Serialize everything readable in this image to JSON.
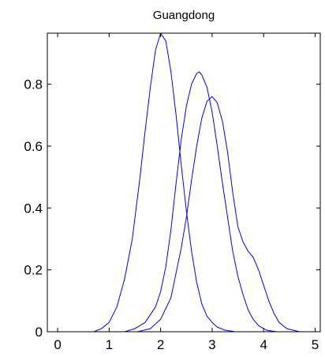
{
  "chart_data": {
    "type": "line",
    "title": "Guangdong",
    "xlabel": "",
    "ylabel": "",
    "xlim": [
      -0.2,
      5.1
    ],
    "ylim": [
      0,
      0.965
    ],
    "xticks": [
      "0",
      "1",
      "2",
      "3",
      "4",
      "5"
    ],
    "yticks": [
      "0",
      "0.2",
      "0.4",
      "0.6",
      "0.8"
    ],
    "grid": false,
    "line_color": "#0000ff",
    "series": [
      {
        "x": [
          0.7,
          0.85,
          1.0,
          1.15,
          1.3,
          1.45,
          1.6,
          1.7,
          1.8,
          1.9,
          2.0,
          2.1,
          2.2,
          2.3,
          2.4,
          2.5,
          2.6,
          2.7,
          2.8,
          2.9,
          3.0,
          3.1,
          3.25,
          3.45
        ],
        "y": [
          0.0,
          0.01,
          0.03,
          0.08,
          0.17,
          0.3,
          0.5,
          0.65,
          0.79,
          0.91,
          0.965,
          0.94,
          0.84,
          0.7,
          0.54,
          0.39,
          0.26,
          0.16,
          0.09,
          0.05,
          0.03,
          0.015,
          0.005,
          0.0
        ]
      },
      {
        "x": [
          1.3,
          1.5,
          1.7,
          1.9,
          2.0,
          2.1,
          2.2,
          2.3,
          2.4,
          2.5,
          2.6,
          2.7,
          2.75,
          2.8,
          2.9,
          3.0,
          3.1,
          3.2,
          3.3,
          3.4,
          3.5,
          3.6,
          3.7,
          3.8,
          3.9,
          4.05,
          4.25
        ],
        "y": [
          0.0,
          0.01,
          0.03,
          0.08,
          0.13,
          0.21,
          0.33,
          0.48,
          0.62,
          0.73,
          0.8,
          0.835,
          0.84,
          0.83,
          0.79,
          0.71,
          0.6,
          0.48,
          0.37,
          0.26,
          0.18,
          0.12,
          0.07,
          0.04,
          0.02,
          0.005,
          0.0
        ]
      },
      {
        "x": [
          1.55,
          1.8,
          2.0,
          2.2,
          2.4,
          2.5,
          2.6,
          2.7,
          2.8,
          2.9,
          3.0,
          3.1,
          3.2,
          3.3,
          3.4,
          3.5,
          3.6,
          3.7,
          3.8,
          3.9,
          4.0,
          4.1,
          4.2,
          4.3,
          4.45,
          4.7
        ],
        "y": [
          0.0,
          0.01,
          0.04,
          0.11,
          0.27,
          0.37,
          0.49,
          0.6,
          0.69,
          0.745,
          0.76,
          0.74,
          0.68,
          0.58,
          0.45,
          0.34,
          0.29,
          0.26,
          0.24,
          0.2,
          0.15,
          0.1,
          0.06,
          0.03,
          0.01,
          0.0
        ]
      }
    ]
  }
}
